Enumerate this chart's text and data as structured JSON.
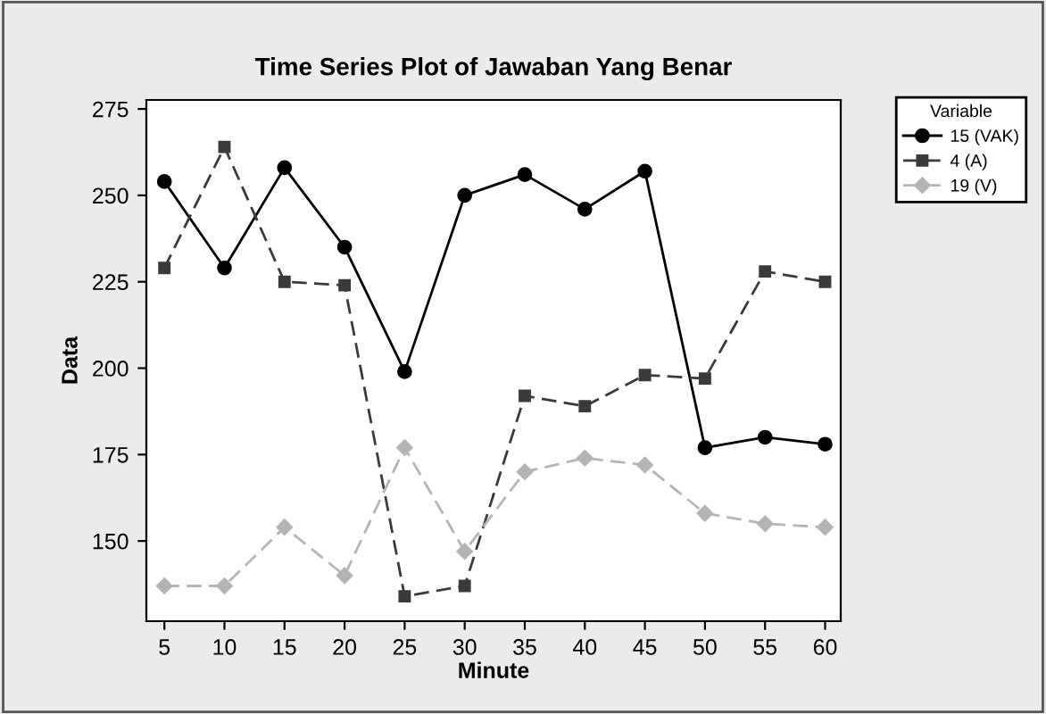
{
  "chart_data": {
    "type": "line",
    "title": "Time Series Plot of Jawaban Yang Benar",
    "xlabel": "Minute",
    "ylabel": "Data",
    "legend_title": "Variable",
    "x": [
      5,
      10,
      15,
      20,
      25,
      30,
      35,
      40,
      45,
      50,
      55,
      60
    ],
    "series": [
      {
        "name": "15 (VAK)",
        "color": "#000000",
        "marker": "circle",
        "line_style": "solid",
        "values": [
          254,
          229,
          258,
          235,
          199,
          250,
          256,
          246,
          257,
          177,
          180,
          178
        ]
      },
      {
        "name": "4 (A)",
        "color": "#3a3a3a",
        "marker": "square",
        "line_style": "dashed",
        "values": [
          229,
          264,
          225,
          224,
          134,
          137,
          192,
          189,
          198,
          197,
          228,
          225
        ]
      },
      {
        "name": "19 (V)",
        "color": "#b4b4b4",
        "marker": "diamond",
        "line_style": "dashed",
        "values": [
          137,
          137,
          154,
          140,
          177,
          147,
          170,
          174,
          172,
          158,
          155,
          154
        ]
      }
    ],
    "xlim": [
      3.5,
      61.3
    ],
    "ylim": [
      126.8,
      277.6
    ],
    "xticks": [
      5,
      10,
      15,
      20,
      25,
      30,
      35,
      40,
      45,
      50,
      55,
      60
    ],
    "yticks": [
      150,
      175,
      200,
      225,
      250,
      275
    ],
    "grid": false,
    "legend": "top right"
  }
}
